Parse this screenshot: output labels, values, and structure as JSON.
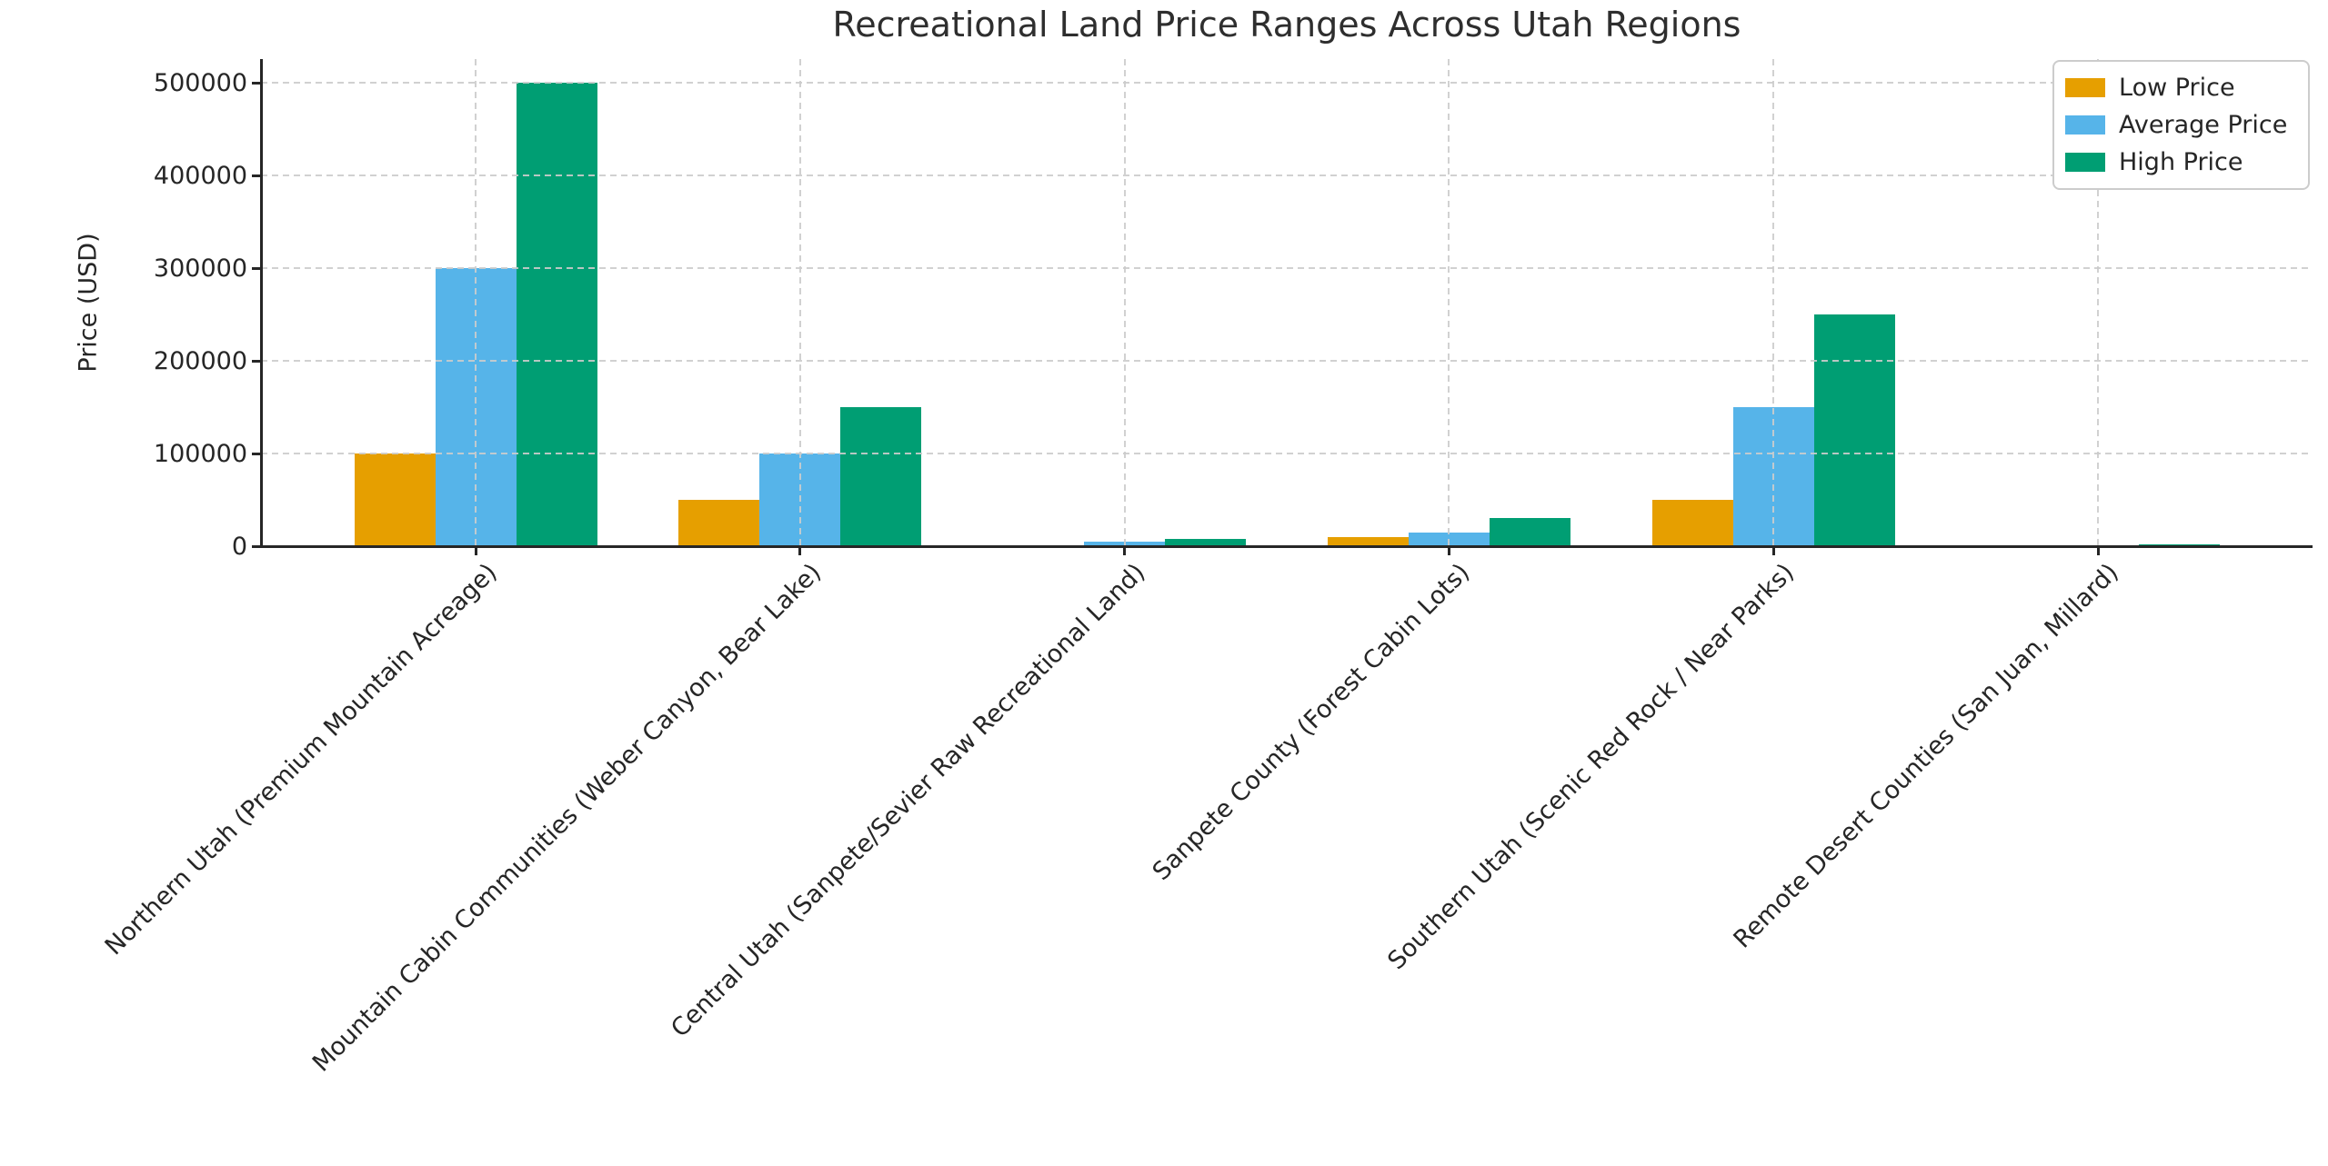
{
  "figure": {
    "title": "Recreational Land Price Ranges Across Utah Regions",
    "ylabel": "Price (USD)",
    "colors": {
      "low": "#E69F00",
      "average": "#56B4E9",
      "high": "#009E73",
      "grid": "#cccccc",
      "axis": "#262626",
      "text": "#262626"
    }
  },
  "legend": {
    "position": "upper right",
    "items": [
      {
        "label": "Low Price",
        "color": "#E69F00"
      },
      {
        "label": "Average Price",
        "color": "#56B4E9"
      },
      {
        "label": "High Price",
        "color": "#009E73"
      }
    ]
  },
  "chart_data": {
    "type": "bar",
    "title": "Recreational Land Price Ranges Across Utah Regions",
    "xlabel": "",
    "ylabel": "Price (USD)",
    "ylim": [
      0,
      500000
    ],
    "yticks": [
      0,
      100000,
      200000,
      300000,
      400000,
      500000
    ],
    "grid": true,
    "legend_position": "upper right",
    "categories": [
      "Northern Utah (Premium Mountain Acreage)",
      "Mountain Cabin Communities (Weber Canyon, Bear Lake)",
      "Central Utah (Sanpete/Sevier Raw Recreational Land)",
      "Sanpete County (Forest Cabin Lots)",
      "Southern Utah (Scenic Red Rock / Near Parks)",
      "Remote Desert Counties (San Juan, Millard)"
    ],
    "series": [
      {
        "name": "Low Price",
        "color": "#E69F00",
        "values": [
          100000,
          50000,
          1000,
          10000,
          50000,
          500
        ]
      },
      {
        "name": "Average Price",
        "color": "#56B4E9",
        "values": [
          300000,
          100000,
          5000,
          15000,
          150000,
          1000
        ]
      },
      {
        "name": "High Price",
        "color": "#009E73",
        "values": [
          500000,
          150000,
          7500,
          30000,
          250000,
          2000
        ]
      }
    ]
  }
}
